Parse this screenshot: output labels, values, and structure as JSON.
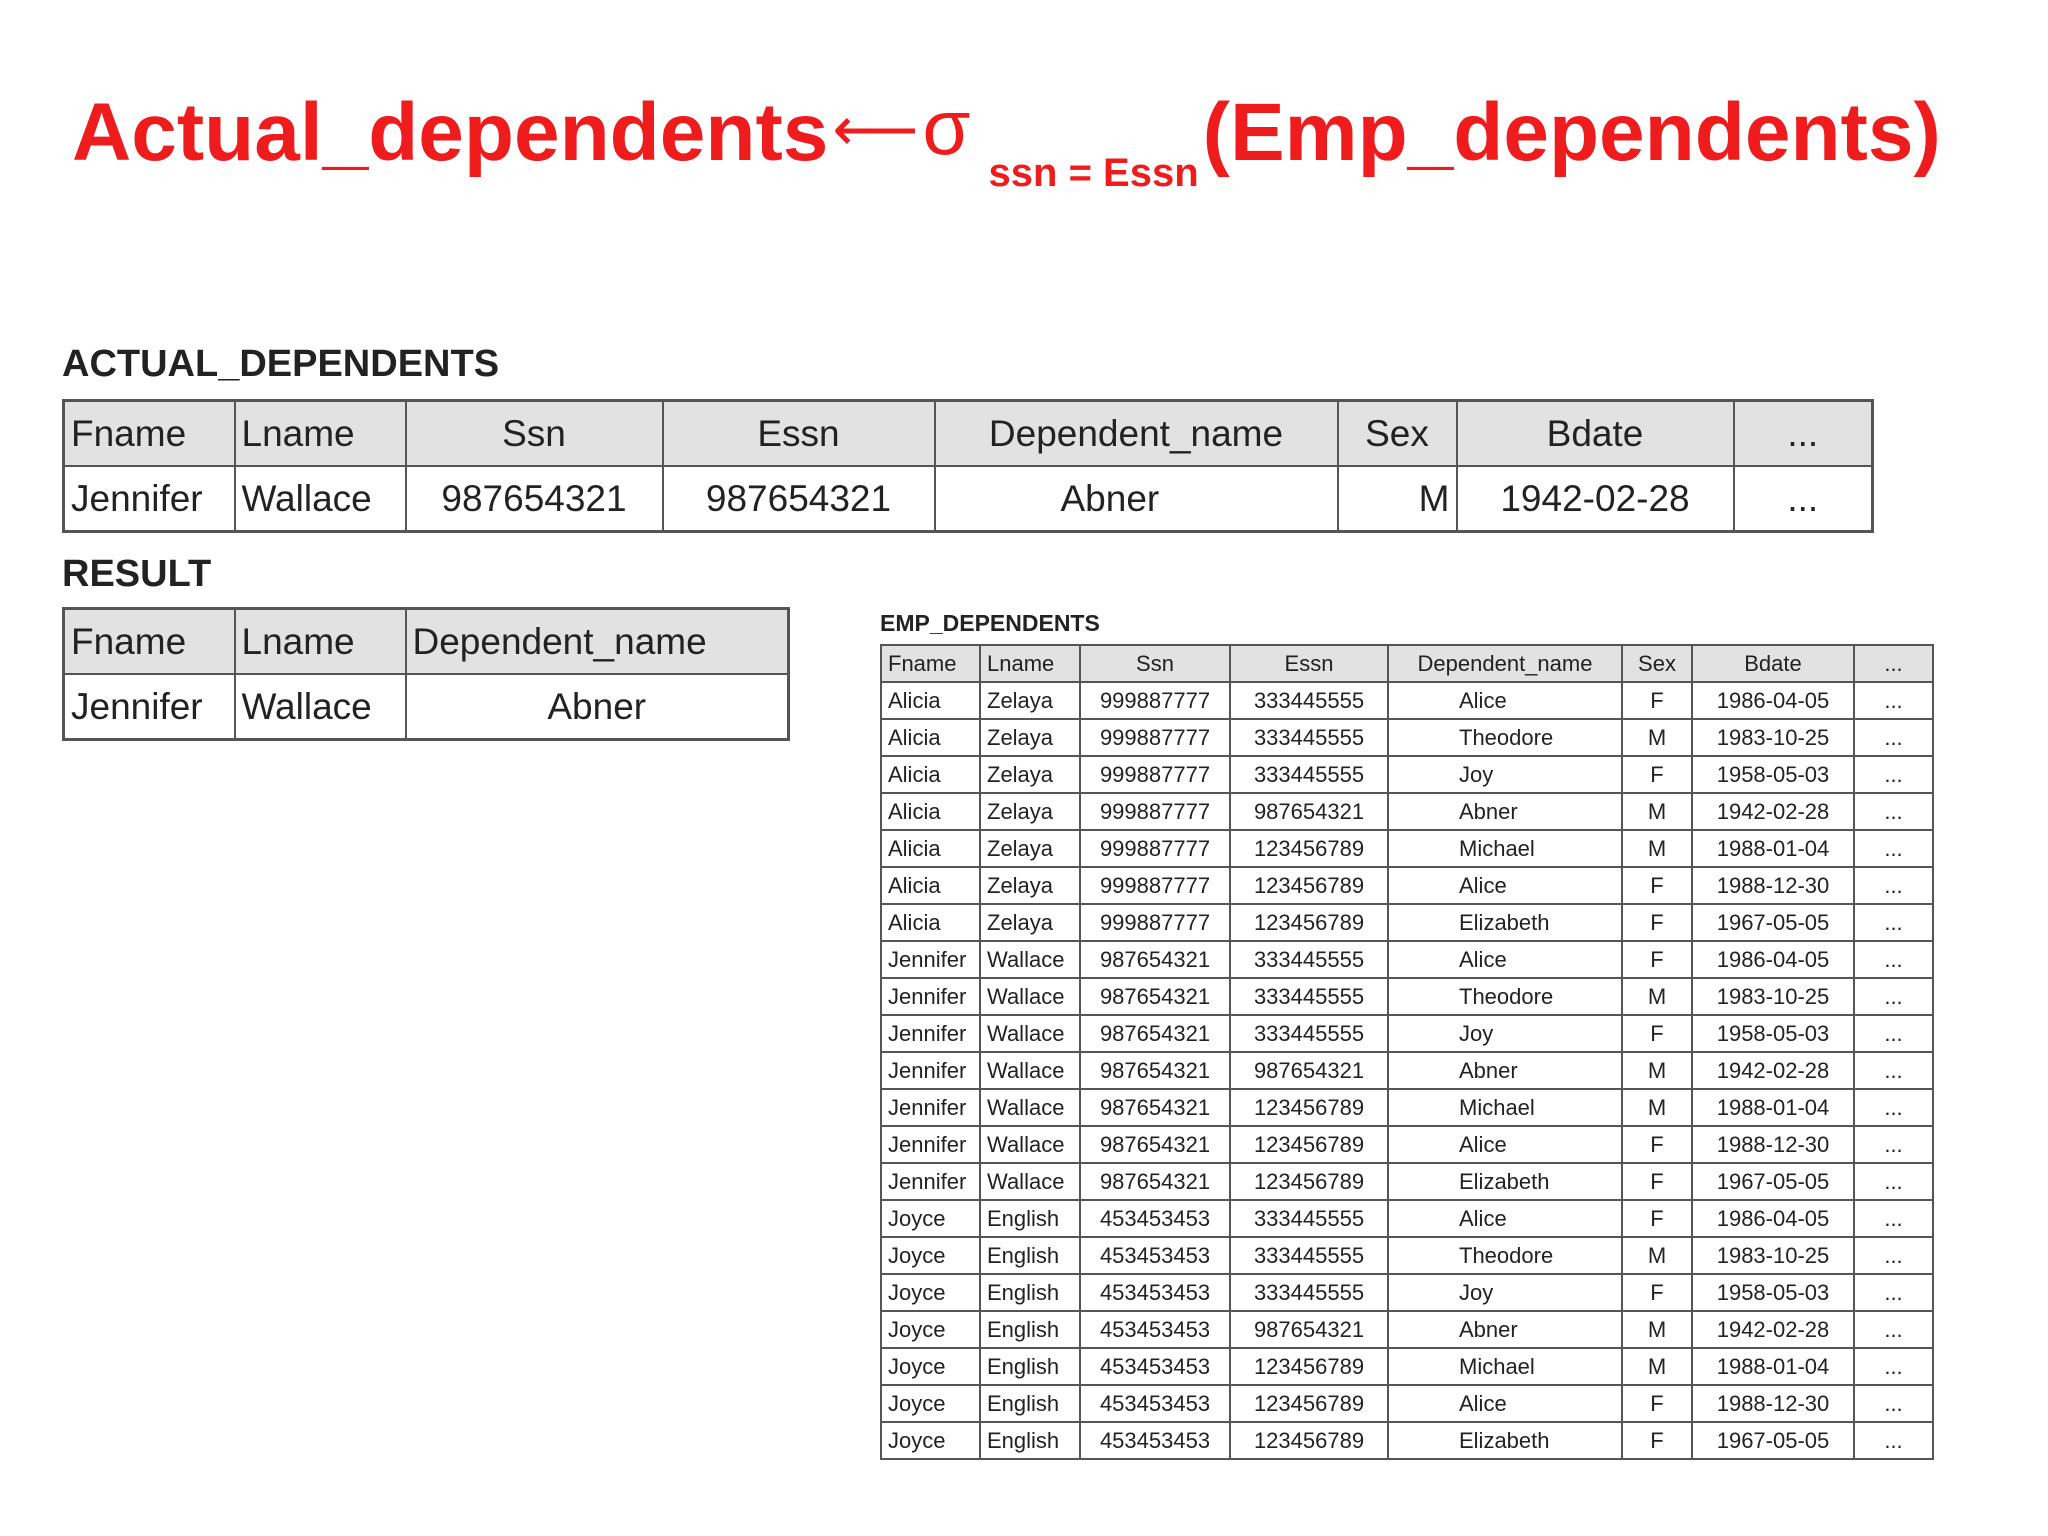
{
  "title": {
    "lhs": "Actual_dependents",
    "arrow": "⟵",
    "sigma": "σ",
    "condition": "ssn = Essn",
    "rhs": "(Emp_dependents)",
    "color": "#ee1c1c"
  },
  "actual_dependents": {
    "label": "ACTUAL_DEPENDENTS",
    "columns": [
      "Fname",
      "Lname",
      "Ssn",
      "Essn",
      "Dependent_name",
      "Sex",
      "Bdate",
      "..."
    ],
    "rows": [
      [
        "Jennifer",
        "Wallace",
        "987654321",
        "987654321",
        "Abner",
        "M",
        "1942-02-28",
        "..."
      ]
    ]
  },
  "result": {
    "label": "RESULT",
    "columns": [
      "Fname",
      "Lname",
      "Dependent_name"
    ],
    "rows": [
      [
        "Jennifer",
        "Wallace",
        "Abner"
      ]
    ]
  },
  "emp_dependents": {
    "label": "EMP_DEPENDENTS",
    "columns": [
      "Fname",
      "Lname",
      "Ssn",
      "Essn",
      "Dependent_name",
      "Sex",
      "Bdate",
      "..."
    ],
    "rows": [
      [
        "Alicia",
        "Zelaya",
        "999887777",
        "333445555",
        "Alice",
        "F",
        "1986-04-05",
        "..."
      ],
      [
        "Alicia",
        "Zelaya",
        "999887777",
        "333445555",
        "Theodore",
        "M",
        "1983-10-25",
        "..."
      ],
      [
        "Alicia",
        "Zelaya",
        "999887777",
        "333445555",
        "Joy",
        "F",
        "1958-05-03",
        "..."
      ],
      [
        "Alicia",
        "Zelaya",
        "999887777",
        "987654321",
        "Abner",
        "M",
        "1942-02-28",
        "..."
      ],
      [
        "Alicia",
        "Zelaya",
        "999887777",
        "123456789",
        "Michael",
        "M",
        "1988-01-04",
        "..."
      ],
      [
        "Alicia",
        "Zelaya",
        "999887777",
        "123456789",
        "Alice",
        "F",
        "1988-12-30",
        "..."
      ],
      [
        "Alicia",
        "Zelaya",
        "999887777",
        "123456789",
        "Elizabeth",
        "F",
        "1967-05-05",
        "..."
      ],
      [
        "Jennifer",
        "Wallace",
        "987654321",
        "333445555",
        "Alice",
        "F",
        "1986-04-05",
        "..."
      ],
      [
        "Jennifer",
        "Wallace",
        "987654321",
        "333445555",
        "Theodore",
        "M",
        "1983-10-25",
        "..."
      ],
      [
        "Jennifer",
        "Wallace",
        "987654321",
        "333445555",
        "Joy",
        "F",
        "1958-05-03",
        "..."
      ],
      [
        "Jennifer",
        "Wallace",
        "987654321",
        "987654321",
        "Abner",
        "M",
        "1942-02-28",
        "..."
      ],
      [
        "Jennifer",
        "Wallace",
        "987654321",
        "123456789",
        "Michael",
        "M",
        "1988-01-04",
        "..."
      ],
      [
        "Jennifer",
        "Wallace",
        "987654321",
        "123456789",
        "Alice",
        "F",
        "1988-12-30",
        "..."
      ],
      [
        "Jennifer",
        "Wallace",
        "987654321",
        "123456789",
        "Elizabeth",
        "F",
        "1967-05-05",
        "..."
      ],
      [
        "Joyce",
        "English",
        "453453453",
        "333445555",
        "Alice",
        "F",
        "1986-04-05",
        "..."
      ],
      [
        "Joyce",
        "English",
        "453453453",
        "333445555",
        "Theodore",
        "M",
        "1983-10-25",
        "..."
      ],
      [
        "Joyce",
        "English",
        "453453453",
        "333445555",
        "Joy",
        "F",
        "1958-05-03",
        "..."
      ],
      [
        "Joyce",
        "English",
        "453453453",
        "987654321",
        "Abner",
        "M",
        "1942-02-28",
        "..."
      ],
      [
        "Joyce",
        "English",
        "453453453",
        "123456789",
        "Michael",
        "M",
        "1988-01-04",
        "..."
      ],
      [
        "Joyce",
        "English",
        "453453453",
        "123456789",
        "Alice",
        "F",
        "1988-12-30",
        "..."
      ],
      [
        "Joyce",
        "English",
        "453453453",
        "123456789",
        "Elizabeth",
        "F",
        "1967-05-05",
        "..."
      ]
    ]
  }
}
